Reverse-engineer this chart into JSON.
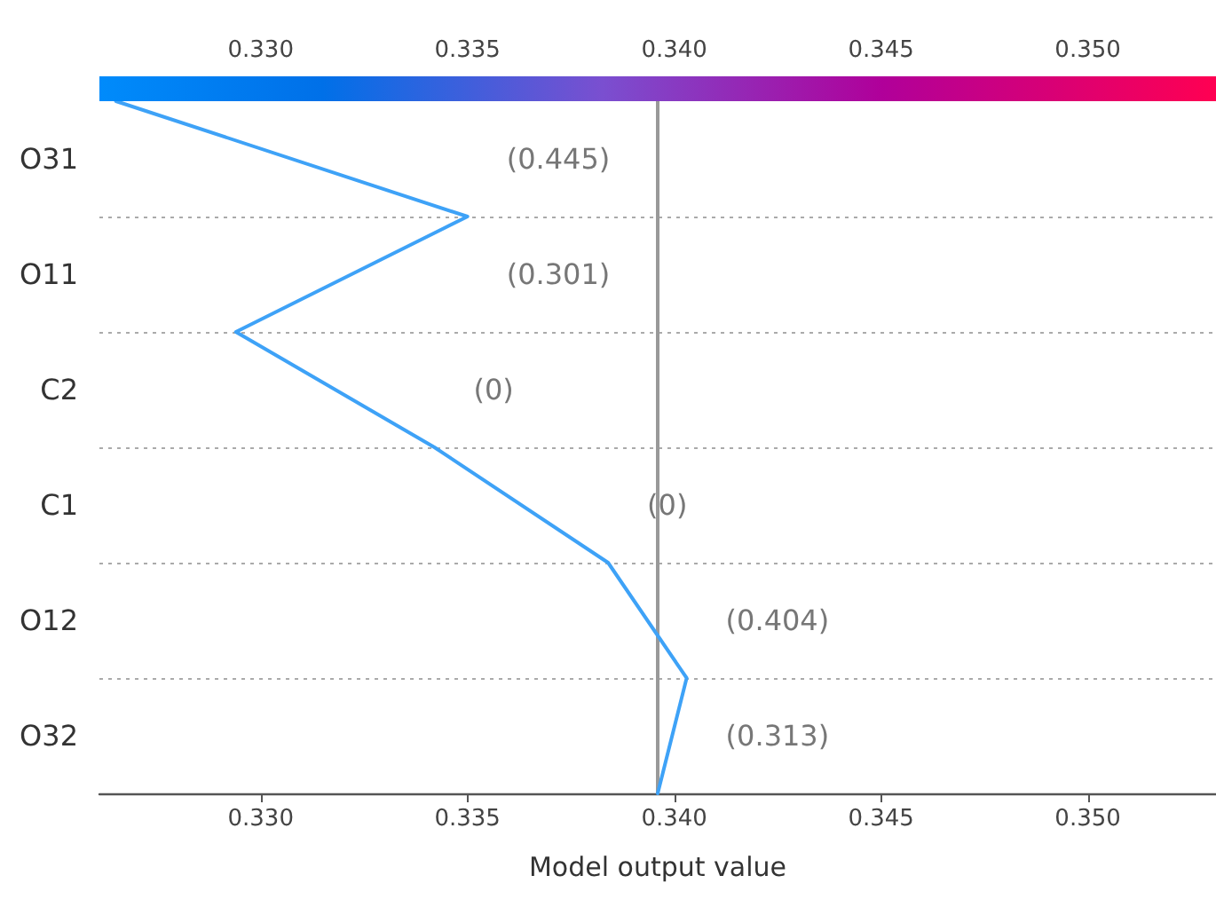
{
  "chart_data": {
    "type": "line",
    "orientation": "horizontal",
    "xlabel": "Model output value",
    "categories": [
      null,
      "O31",
      null,
      "O11",
      null,
      "C2",
      null,
      "C1",
      null,
      "O12",
      null,
      "O32",
      null
    ],
    "series": [
      {
        "color": "#3ea2f7",
        "values": [
          0.3265,
          null,
          0.335,
          null,
          0.3294,
          null,
          0.3342,
          null,
          0.3384,
          null,
          0.3403,
          null,
          0.3396
        ]
      }
    ],
    "xlim": [
      0.3261,
      0.3531
    ],
    "xticks": [
      {
        "value": 0.33,
        "label": "0.330"
      },
      0.335,
      {
        "value": 0.34,
        "label": "0.340"
      },
      0.345,
      {
        "value": 0.35,
        "label": "0.350"
      }
    ],
    "x2lim": [
      0.3261,
      0.3531
    ],
    "x2ticks": [
      {
        "value": 0.33,
        "label": "0.330"
      },
      0.335,
      {
        "value": 0.34,
        "label": "0.340"
      },
      0.345,
      {
        "value": 0.35,
        "label": "0.350"
      }
    ],
    "ref_lines": [
      {
        "axis": "x",
        "value": 0.3396,
        "color": "#999999"
      }
    ],
    "annotations": [
      "(0.445)",
      "(0.301)",
      "(0)",
      "(0)",
      "(0.404)",
      "(0.313)"
    ],
    "grid": "y",
    "marker": "none",
    "line_style": "solid"
  }
}
